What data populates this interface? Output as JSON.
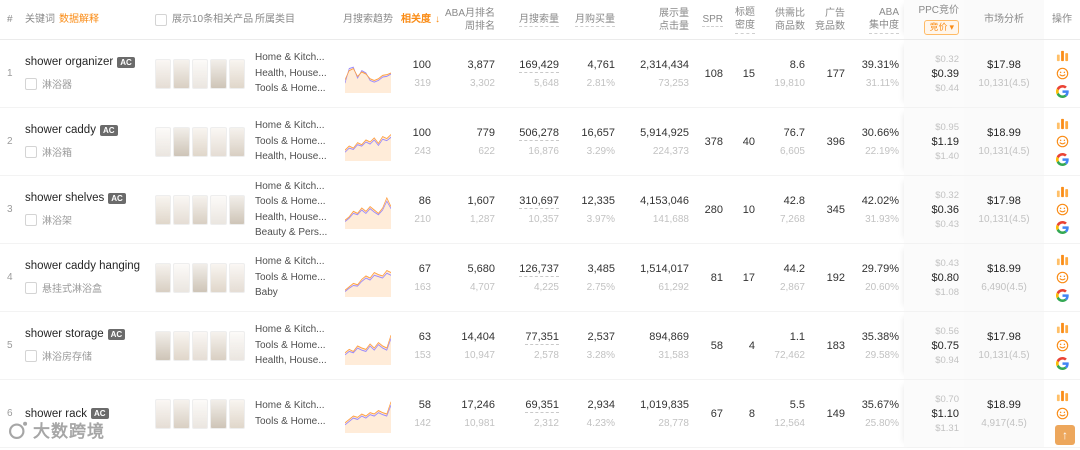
{
  "watermark": {
    "brand": "大数跨境"
  },
  "back_to_top": "↑",
  "table": {
    "headers": {
      "num": "#",
      "keyword": "关键词",
      "data_explain": "数据解释",
      "show_related": "展示10条相关产品",
      "category": "所属类目",
      "trend": "月搜索趋势",
      "relevance": "相关度",
      "relevance_sort": "↓",
      "aba1": "ABA月排名",
      "aba2": "周排名",
      "search": "月搜索量",
      "buy": "月购买量",
      "impr1": "展示量",
      "impr2": "点击量",
      "spr": "SPR",
      "density1": "标题",
      "density2": "密度",
      "ratio1": "供需比",
      "ratio2": "商品数",
      "ad1": "广告",
      "ad2": "竞品数",
      "conc1": "ABA",
      "conc2": "集中度",
      "ppc": "PPC竞价",
      "ppc_filter": "竞价",
      "ppc_filter_caret": "▾",
      "market": "市场分析",
      "actions": "操作"
    },
    "rows": [
      {
        "num": "1",
        "keyword": "shower organizer",
        "badge": "AC",
        "translation": "淋浴器",
        "categories": [
          "Home & Kitch...",
          "Health, House...",
          "Tools & Home..."
        ],
        "trend": {
          "orange": [
            35,
            62,
            68,
            45,
            58,
            52,
            38,
            33,
            38,
            48,
            50,
            55
          ],
          "purple": [
            25,
            68,
            72,
            40,
            62,
            55,
            33,
            28,
            33,
            43,
            45,
            52
          ]
        },
        "relevance": "100",
        "relevance_sub": "319",
        "aba": "3,877",
        "aba_sub": "3,302",
        "search": "169,429",
        "search_sub": "5,648",
        "buy": "4,761",
        "buy_sub": "2.81%",
        "impressions": "2,314,434",
        "clicks": "73,253",
        "spr": "108",
        "density": "15",
        "ratio": "8.6",
        "products": "19,810",
        "ad_competitors": "177",
        "conc": "39.31%",
        "conc_sub": "31.11%",
        "ppc_low": "$0.32",
        "ppc_mid": "$0.39",
        "ppc_high": "$0.44",
        "price": "$17.98",
        "reviews": "10,131(4.5)"
      },
      {
        "num": "2",
        "keyword": "shower caddy",
        "badge": "AC",
        "translation": "淋浴箱",
        "categories": [
          "Home & Kitch...",
          "Tools & Home...",
          "Health, House..."
        ],
        "trend": {
          "orange": [
            28,
            40,
            34,
            50,
            44,
            58,
            52,
            64,
            48,
            68,
            62,
            74
          ],
          "purple": [
            22,
            34,
            30,
            44,
            40,
            52,
            46,
            58,
            42,
            60,
            56,
            66
          ]
        },
        "relevance": "100",
        "relevance_sub": "243",
        "aba": "779",
        "aba_sub": "622",
        "search": "506,278",
        "search_sub": "16,876",
        "buy": "16,657",
        "buy_sub": "3.29%",
        "impressions": "5,914,925",
        "clicks": "224,373",
        "spr": "378",
        "density": "40",
        "ratio": "76.7",
        "products": "6,605",
        "ad_competitors": "396",
        "conc": "30.66%",
        "conc_sub": "22.19%",
        "ppc_low": "$0.95",
        "ppc_mid": "$1.19",
        "ppc_high": "$1.40",
        "price": "$18.99",
        "reviews": "10,131(4.5)"
      },
      {
        "num": "3",
        "keyword": "shower shelves",
        "badge": "AC",
        "translation": "淋浴架",
        "categories": [
          "Home & Kitch...",
          "Tools & Home...",
          "Health, House...",
          "Beauty & Pers..."
        ],
        "trend": {
          "orange": [
            22,
            32,
            48,
            42,
            58,
            48,
            62,
            52,
            42,
            58,
            88,
            62
          ],
          "purple": [
            18,
            28,
            42,
            38,
            52,
            42,
            56,
            46,
            38,
            52,
            78,
            56
          ]
        },
        "relevance": "86",
        "relevance_sub": "210",
        "aba": "1,607",
        "aba_sub": "1,287",
        "search": "310,697",
        "search_sub": "10,357",
        "buy": "12,335",
        "buy_sub": "3.97%",
        "impressions": "4,153,046",
        "clicks": "141,688",
        "spr": "280",
        "density": "10",
        "ratio": "42.8",
        "products": "7,268",
        "ad_competitors": "345",
        "conc": "42.02%",
        "conc_sub": "31.93%",
        "ppc_low": "$0.32",
        "ppc_mid": "$0.36",
        "ppc_high": "$0.43",
        "price": "$17.98",
        "reviews": "10,131(4.5)"
      },
      {
        "num": "4",
        "keyword": "shower caddy hanging",
        "badge": "",
        "translation": "悬挂式淋浴盒",
        "categories": [
          "Home & Kitch...",
          "Tools & Home...",
          "Baby"
        ],
        "trend": {
          "orange": [
            16,
            26,
            36,
            32,
            48,
            58,
            52,
            68,
            62,
            58,
            74,
            68
          ],
          "purple": [
            12,
            22,
            30,
            28,
            42,
            52,
            46,
            60,
            56,
            52,
            66,
            60
          ]
        },
        "relevance": "67",
        "relevance_sub": "163",
        "aba": "5,680",
        "aba_sub": "4,707",
        "search": "126,737",
        "search_sub": "4,225",
        "buy": "3,485",
        "buy_sub": "2.75%",
        "impressions": "1,514,017",
        "clicks": "61,292",
        "spr": "81",
        "density": "17",
        "ratio": "44.2",
        "products": "2,867",
        "ad_competitors": "192",
        "conc": "29.79%",
        "conc_sub": "20.60%",
        "ppc_low": "$0.43",
        "ppc_mid": "$0.80",
        "ppc_high": "$1.08",
        "price": "$18.99",
        "reviews": "6,490(4.5)"
      },
      {
        "num": "5",
        "keyword": "shower storage",
        "badge": "AC",
        "translation": "淋浴房存储",
        "categories": [
          "Home & Kitch...",
          "Tools & Home...",
          "Health, House..."
        ],
        "trend": {
          "orange": [
            32,
            42,
            36,
            52,
            46,
            42,
            58,
            46,
            62,
            52,
            46,
            84
          ],
          "purple": [
            26,
            36,
            32,
            46,
            40,
            36,
            52,
            40,
            56,
            46,
            40,
            74
          ]
        },
        "relevance": "63",
        "relevance_sub": "153",
        "aba": "14,404",
        "aba_sub": "10,947",
        "search": "77,351",
        "search_sub": "2,578",
        "buy": "2,537",
        "buy_sub": "3.28%",
        "impressions": "894,869",
        "clicks": "31,583",
        "spr": "58",
        "density": "4",
        "ratio": "1.1",
        "products": "72,462",
        "ad_competitors": "183",
        "conc": "35.38%",
        "conc_sub": "29.58%",
        "ppc_low": "$0.56",
        "ppc_mid": "$0.75",
        "ppc_high": "$0.94",
        "price": "$17.98",
        "reviews": "10,131(4.5)"
      },
      {
        "num": "6",
        "keyword": "shower rack",
        "badge": "AC",
        "translation": "",
        "categories": [
          "Home & Kitch...",
          "Tools & Home..."
        ],
        "trend": {
          "orange": [
            26,
            36,
            46,
            42,
            52,
            46,
            56,
            52,
            62,
            56,
            52,
            88
          ],
          "purple": [
            20,
            30,
            40,
            36,
            46,
            40,
            50,
            46,
            56,
            50,
            46,
            78
          ]
        },
        "relevance": "58",
        "relevance_sub": "142",
        "aba": "17,246",
        "aba_sub": "10,981",
        "search": "69,351",
        "search_sub": "2,312",
        "buy": "2,934",
        "buy_sub": "4.23%",
        "impressions": "1,019,835",
        "clicks": "28,778",
        "spr": "67",
        "density": "8",
        "ratio": "5.5",
        "products": "12,564",
        "ad_competitors": "149",
        "conc": "35.67%",
        "conc_sub": "25.80%",
        "ppc_low": "$0.70",
        "ppc_mid": "$1.10",
        "ppc_high": "$1.31",
        "price": "$18.99",
        "reviews": "4,917(4.5)"
      }
    ]
  }
}
